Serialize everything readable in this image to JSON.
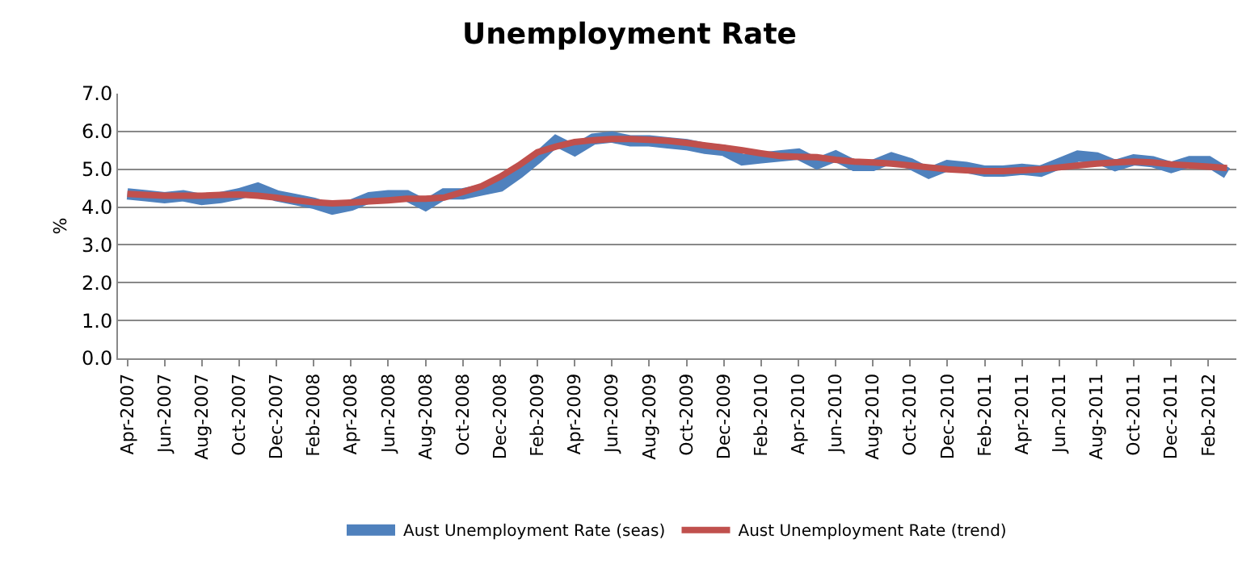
{
  "chart_data": {
    "type": "line",
    "title": "Unemployment Rate",
    "ylabel": "%",
    "categories": [
      "Apr-2007",
      null,
      "Jun-2007",
      null,
      "Aug-2007",
      null,
      "Oct-2007",
      null,
      "Dec-2007",
      null,
      "Feb-2008",
      null,
      "Apr-2008",
      null,
      "Jun-2008",
      null,
      "Aug-2008",
      null,
      "Oct-2008",
      null,
      "Dec-2008",
      null,
      "Feb-2009",
      null,
      "Apr-2009",
      null,
      "Jun-2009",
      null,
      "Aug-2009",
      null,
      "Oct-2009",
      null,
      "Dec-2009",
      null,
      "Feb-2010",
      null,
      "Apr-2010",
      null,
      "Jun-2010",
      null,
      "Aug-2010",
      null,
      "Oct-2010",
      null,
      "Dec-2010",
      null,
      "Feb-2011",
      null,
      "Apr-2011",
      null,
      "Jun-2011",
      null,
      "Aug-2011",
      null,
      "Oct-2011",
      null,
      "Dec-2011",
      null,
      "Feb-2012",
      null
    ],
    "series": [
      {
        "name": "Aust Unemployment Rate (seas)",
        "color": "#4f81bd",
        "values": [
          4.35,
          4.3,
          4.25,
          4.3,
          4.2,
          4.25,
          4.35,
          4.5,
          4.3,
          4.2,
          4.1,
          3.95,
          4.05,
          4.25,
          4.3,
          4.3,
          4.05,
          4.35,
          4.35,
          4.45,
          4.55,
          4.9,
          5.3,
          5.75,
          5.5,
          5.8,
          5.85,
          5.75,
          5.75,
          5.7,
          5.65,
          5.55,
          5.5,
          5.25,
          5.3,
          5.35,
          5.4,
          5.15,
          5.35,
          5.1,
          5.1,
          5.3,
          5.15,
          4.9,
          5.1,
          5.05,
          4.95,
          4.95,
          5.0,
          4.95,
          5.15,
          5.35,
          5.3,
          5.1,
          5.25,
          5.2,
          5.05,
          5.2,
          5.2,
          4.9
        ]
      },
      {
        "name": "Aust Unemployment Rate (trend)",
        "color": "#c0504d",
        "values": [
          4.35,
          4.32,
          4.3,
          4.3,
          4.3,
          4.32,
          4.33,
          4.3,
          4.25,
          4.18,
          4.13,
          4.1,
          4.12,
          4.15,
          4.18,
          4.22,
          4.22,
          4.25,
          4.4,
          4.55,
          4.8,
          5.1,
          5.45,
          5.6,
          5.72,
          5.77,
          5.8,
          5.8,
          5.78,
          5.75,
          5.7,
          5.63,
          5.57,
          5.5,
          5.42,
          5.35,
          5.33,
          5.32,
          5.25,
          5.2,
          5.18,
          5.15,
          5.1,
          5.05,
          5.0,
          4.97,
          4.95,
          4.95,
          4.97,
          5.0,
          5.05,
          5.1,
          5.15,
          5.18,
          5.2,
          5.18,
          5.13,
          5.1,
          5.07,
          5.03
        ]
      }
    ],
    "ylim": [
      0,
      7
    ],
    "yticks": [
      {
        "value": 0,
        "label": "0.0"
      },
      {
        "value": 1,
        "label": "1.0"
      },
      {
        "value": 2,
        "label": "2.0"
      },
      {
        "value": 3,
        "label": "3.0"
      },
      {
        "value": 4,
        "label": "4.0"
      },
      {
        "value": 5,
        "label": "5.0"
      },
      {
        "value": 6,
        "label": "6.0"
      },
      {
        "value": 7,
        "label": "7.0"
      }
    ],
    "grid": "y",
    "legend": "bottom",
    "marker": "none",
    "line_style": "solid"
  }
}
